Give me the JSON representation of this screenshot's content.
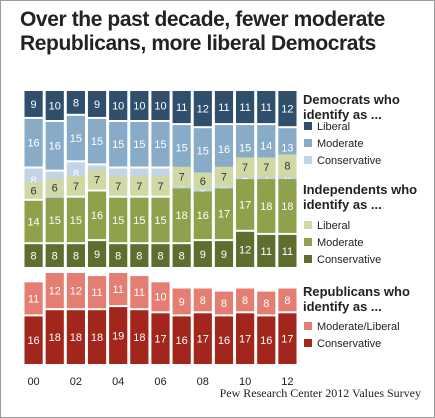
{
  "chart_data": {
    "type": "bar",
    "title": "Over the past decade, fewer moderate Republicans, more liberal Democrats",
    "categories": [
      "00",
      null,
      "02",
      null,
      "04",
      null,
      "06",
      null,
      "08",
      null,
      "10",
      null,
      "12"
    ],
    "groups": [
      {
        "title": "Democrats who identify as ...",
        "series": [
          {
            "name": "Liberal",
            "color": "#2f4f6d",
            "values": [
              9,
              10,
              8,
              9,
              10,
              10,
              10,
              11,
              12,
              11,
              11,
              11,
              12
            ]
          },
          {
            "name": "Moderate",
            "color": "#88abc8",
            "values": [
              16,
              16,
              15,
              15,
              15,
              15,
              15,
              15,
              15,
              16,
              15,
              14,
              13
            ]
          },
          {
            "name": "Conservative",
            "color": "#c3d4e5",
            "values": [
              8,
              9,
              8,
              8,
              8,
              8,
              8,
              8,
              9,
              8,
              7,
              7,
              6
            ]
          }
        ]
      },
      {
        "title": "Independents who identify as ...",
        "series": [
          {
            "name": "Liberal",
            "color": "#d0d8a6",
            "values": [
              6,
              6,
              7,
              7,
              7,
              7,
              7,
              7,
              6,
              7,
              7,
              7,
              8
            ]
          },
          {
            "name": "Moderate",
            "color": "#8fa24b",
            "values": [
              14,
              15,
              15,
              16,
              15,
              15,
              15,
              18,
              16,
              17,
              17,
              18,
              18
            ]
          },
          {
            "name": "Conservative",
            "color": "#5f6e2f",
            "values": [
              8,
              8,
              8,
              9,
              8,
              8,
              8,
              8,
              9,
              9,
              12,
              11,
              11
            ]
          }
        ]
      },
      {
        "title": "Republicans who identify as ...",
        "series": [
          {
            "name": "Moderate/Liberal",
            "color": "#e47e72",
            "values": [
              11,
              12,
              12,
              11,
              11,
              11,
              10,
              9,
              8,
              8,
              8,
              8,
              8
            ]
          },
          {
            "name": "Conservative",
            "color": "#a3261c",
            "values": [
              16,
              18,
              18,
              18,
              19,
              18,
              17,
              16,
              17,
              16,
              17,
              16,
              17
            ]
          }
        ]
      }
    ],
    "source": "Pew Research Center 2012 Values Survey"
  }
}
